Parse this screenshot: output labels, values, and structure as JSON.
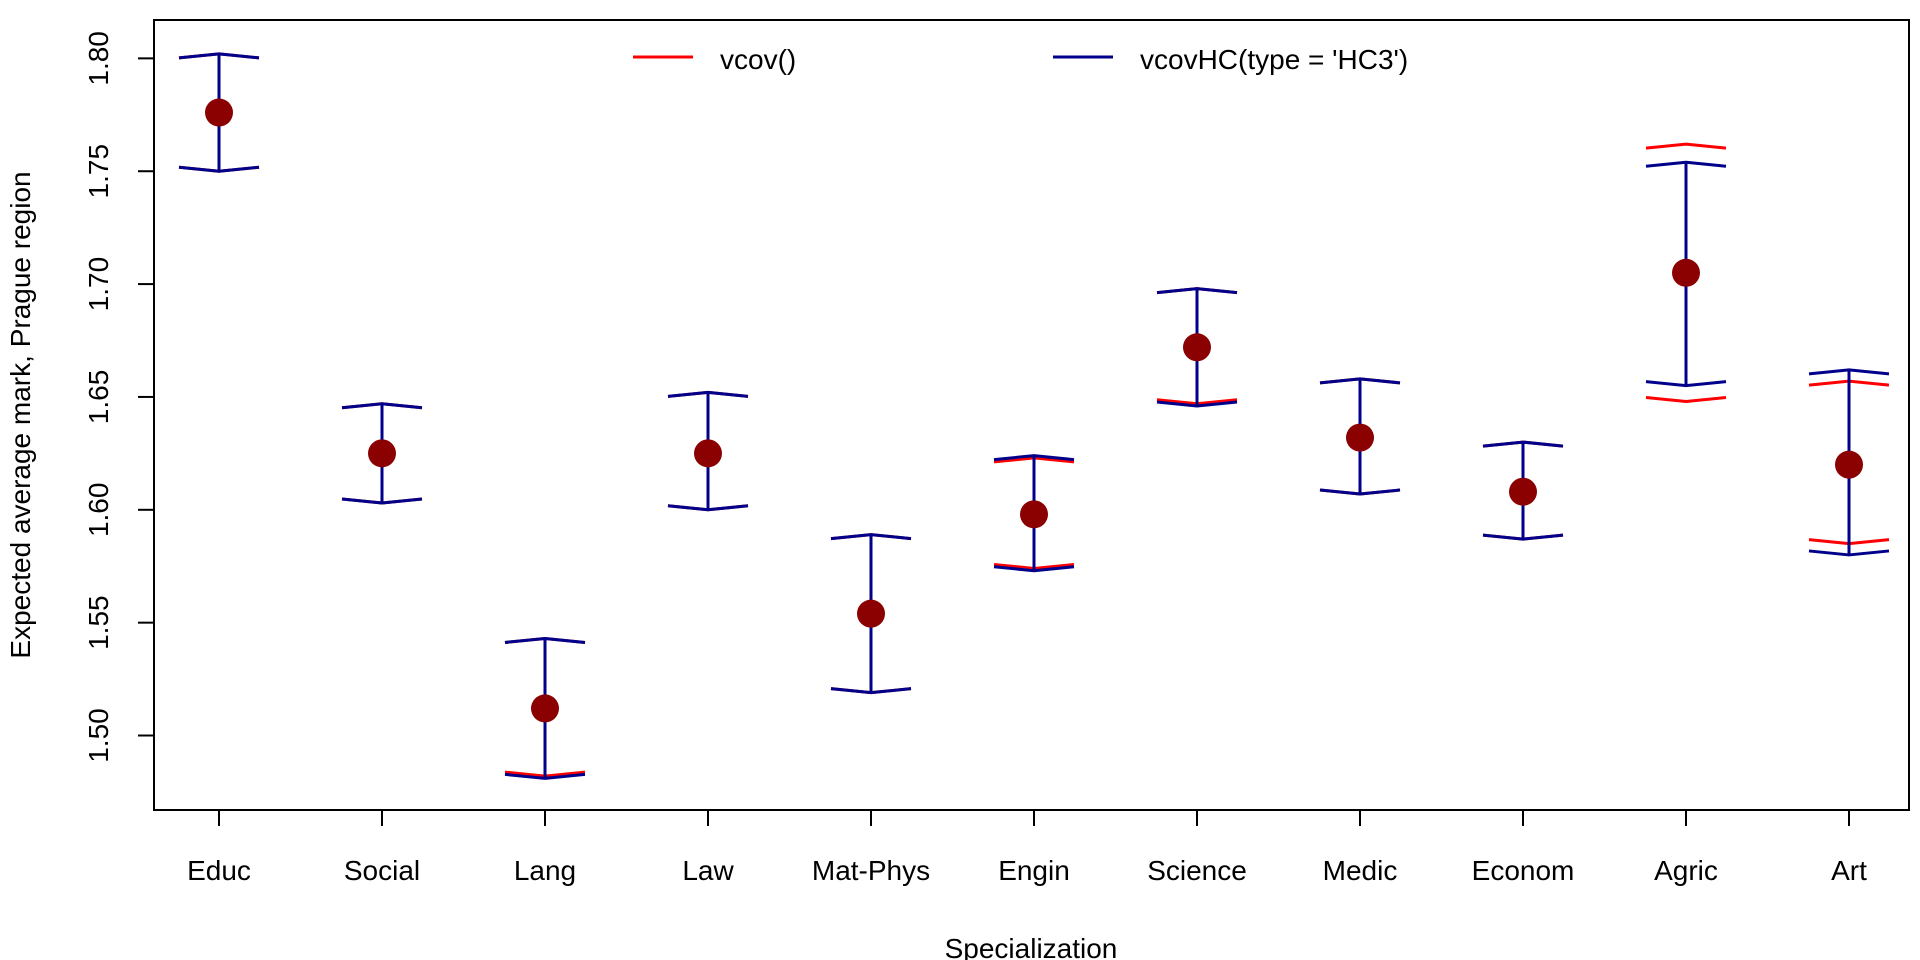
{
  "chart_data": {
    "type": "scatter",
    "title": "",
    "xlabel": "Specialization",
    "ylabel": "Expected average mark, Prague region",
    "categories": [
      "Educ",
      "Social",
      "Lang",
      "Law",
      "Mat-Phys",
      "Engin",
      "Science",
      "Medic",
      "Econom",
      "Agric",
      "Art"
    ],
    "estimates": [
      1.776,
      1.625,
      1.512,
      1.625,
      1.554,
      1.598,
      1.672,
      1.632,
      1.608,
      1.705,
      1.62
    ],
    "series": [
      {
        "name": "vcov()",
        "color": "#ff0000",
        "lower": [
          1.75,
          1.603,
          1.482,
          1.6,
          1.519,
          1.574,
          1.647,
          1.607,
          1.587,
          1.648,
          1.585
        ],
        "upper": [
          1.802,
          1.647,
          1.543,
          1.652,
          1.589,
          1.623,
          1.698,
          1.658,
          1.63,
          1.762,
          1.657
        ]
      },
      {
        "name": "vcovHC(type = 'HC3')",
        "color": "#00008b",
        "lower": [
          1.75,
          1.603,
          1.481,
          1.6,
          1.519,
          1.573,
          1.646,
          1.607,
          1.587,
          1.655,
          1.58
        ],
        "upper": [
          1.802,
          1.647,
          1.543,
          1.652,
          1.589,
          1.624,
          1.698,
          1.658,
          1.63,
          1.754,
          1.662
        ]
      }
    ],
    "point_color": "#8b0000",
    "yticks": [
      "1.50",
      "1.55",
      "1.60",
      "1.65",
      "1.70",
      "1.75",
      "1.80"
    ],
    "ylim": [
      1.467,
      1.817
    ],
    "grid": false,
    "legend_position": "top"
  }
}
